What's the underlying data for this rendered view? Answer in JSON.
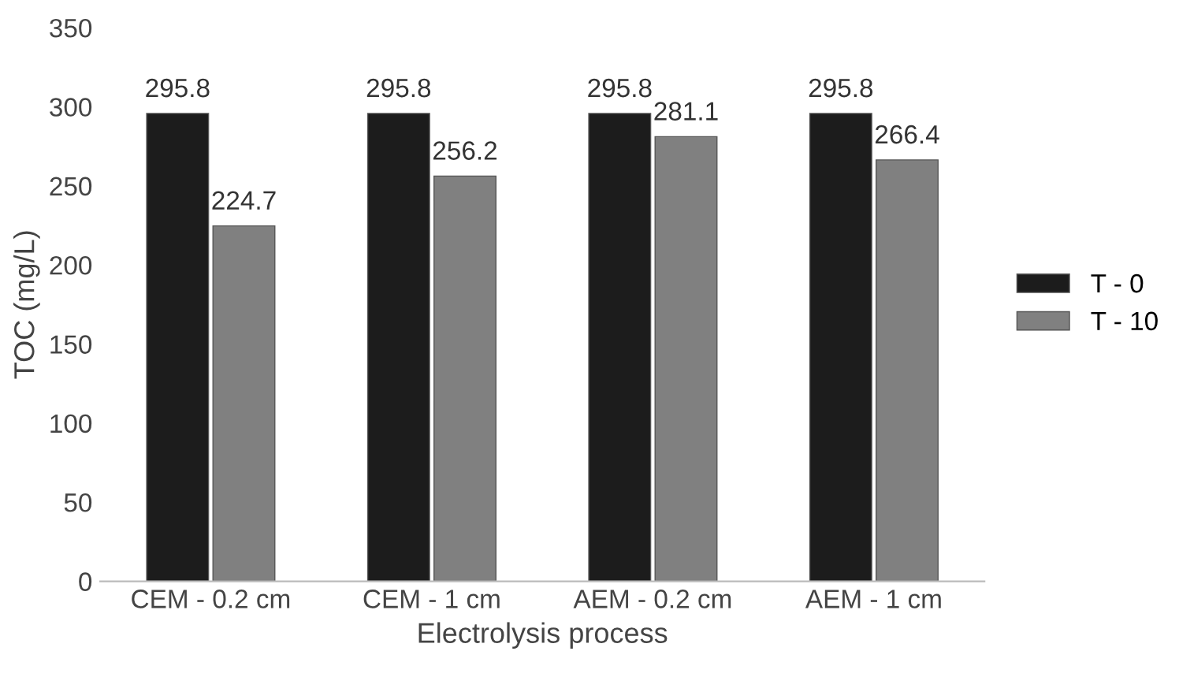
{
  "chart_data": {
    "type": "bar",
    "xlabel": "Electrolysis process",
    "ylabel": "TOC (mg/L)",
    "categories": [
      "CEM - 0.2 cm",
      "CEM - 1 cm",
      "AEM - 0.2 cm",
      "AEM - 1 cm"
    ],
    "series": [
      {
        "name": "T - 0",
        "color": "#1c1c1c",
        "values": [
          295.8,
          295.8,
          295.8,
          295.8
        ]
      },
      {
        "name": "T - 10",
        "color": "#808080",
        "values": [
          224.7,
          256.2,
          281.1,
          266.4
        ]
      }
    ],
    "ylim": [
      0,
      350
    ],
    "yticks": [
      0,
      50,
      100,
      150,
      200,
      250,
      300,
      350
    ],
    "grid": false,
    "legend": "right",
    "data_labels": true
  }
}
